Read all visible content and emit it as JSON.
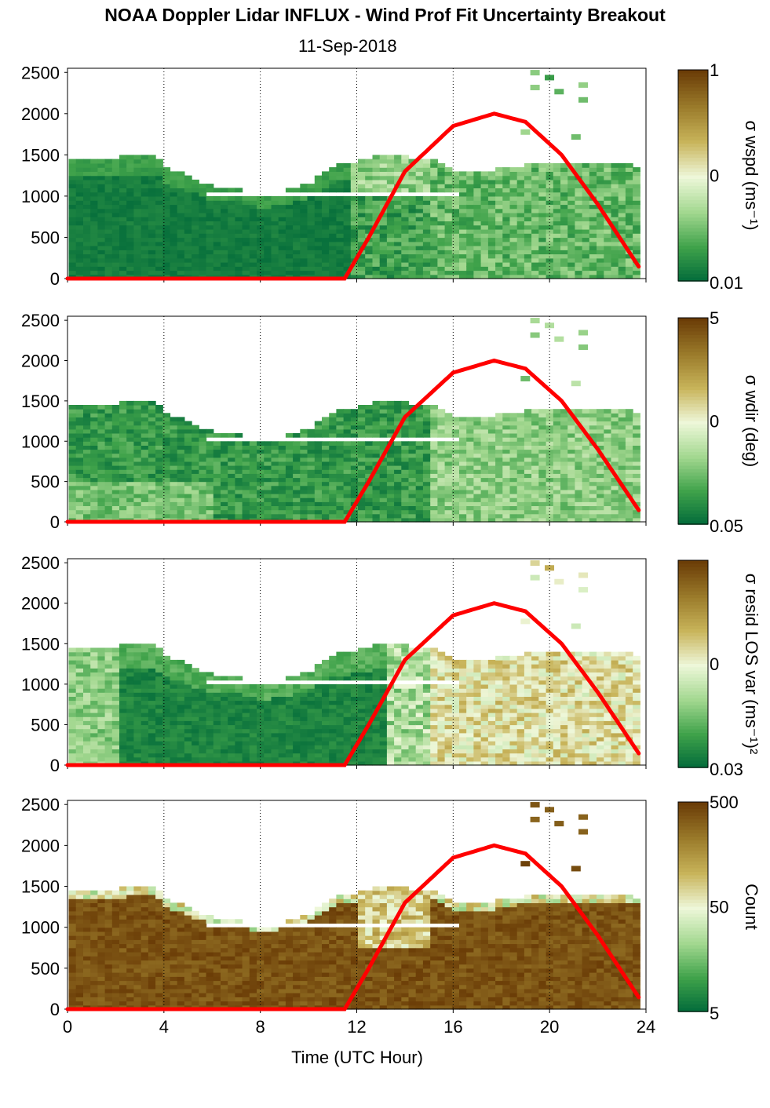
{
  "title": "NOAA Doppler Lidar INFLUX - Wind Prof Fit Uncertainty Breakout",
  "subtitle": "11-Sep-2018",
  "colors": {
    "dark_green": "#00693a",
    "mid_green": "#3fa24a",
    "light_green": "#a3d890",
    "pale": "#eef7d9",
    "khaki": "#c8b45a",
    "olive_brown": "#9a7a2a",
    "dark_brown": "#6b3d07",
    "sun_curve": "#ff0000"
  },
  "chart_data": [
    {
      "type": "heatmap",
      "panel": "sigma wspd",
      "xlabel": "",
      "ylabel": "",
      "xlim": [
        0,
        24
      ],
      "ylim": [
        0,
        2550
      ],
      "x_ticks": [
        "0",
        "4",
        "8",
        "12",
        "16",
        "20",
        "24"
      ],
      "y_ticks": [
        "0",
        "500",
        "1000",
        "1500",
        "2000",
        "2500"
      ],
      "colorbar_label": "σ wspd (ms⁻¹)",
      "colorbar_ticks": [
        "1",
        "0",
        "0.01"
      ],
      "top_of_data_m": {
        "x": [
          0,
          2,
          3.5,
          4,
          5,
          6,
          7,
          8,
          9,
          10,
          11,
          12,
          13,
          14,
          15,
          16,
          17,
          18,
          19,
          20,
          21,
          22,
          23,
          23.7
        ],
        "y": [
          1450,
          1450,
          1460,
          1320,
          1200,
          1080,
          1070,
          980,
          1050,
          1150,
          1350,
          1400,
          1480,
          1450,
          1420,
          1280,
          1250,
          1320,
          1360,
          1380,
          1380,
          1360,
          1360,
          1340
        ]
      },
      "solar_curve": {
        "x": [
          0,
          11.5,
          12.5,
          14,
          16,
          17.7,
          19,
          20.5,
          22,
          23.8
        ],
        "y": [
          0,
          0,
          500,
          1300,
          1850,
          2000,
          1900,
          1500,
          900,
          100
        ]
      }
    },
    {
      "type": "heatmap",
      "panel": "sigma wdir",
      "xlim": [
        0,
        24
      ],
      "ylim": [
        0,
        2550
      ],
      "x_ticks": [
        "0",
        "4",
        "8",
        "12",
        "16",
        "20",
        "24"
      ],
      "y_ticks": [
        "0",
        "500",
        "1000",
        "1500",
        "2000",
        "2500"
      ],
      "colorbar_label": "σ wdir (deg)",
      "colorbar_ticks": [
        "5",
        "0",
        "0.05"
      ]
    },
    {
      "type": "heatmap",
      "panel": "sigma resid LOS var",
      "xlim": [
        0,
        24
      ],
      "ylim": [
        0,
        2550
      ],
      "x_ticks": [
        "0",
        "4",
        "8",
        "12",
        "16",
        "20",
        "24"
      ],
      "y_ticks": [
        "0",
        "500",
        "1000",
        "1500",
        "2000",
        "2500"
      ],
      "colorbar_label": "σ resid LOS var (ms⁻¹)²",
      "colorbar_ticks": [
        "0",
        "0.03"
      ]
    },
    {
      "type": "heatmap",
      "panel": "Count",
      "xlim": [
        0,
        24
      ],
      "ylim": [
        0,
        2550
      ],
      "x_ticks": [
        "0",
        "4",
        "8",
        "12",
        "16",
        "20",
        "24"
      ],
      "y_ticks": [
        "0",
        "500",
        "1000",
        "1500",
        "2000",
        "2500"
      ],
      "xlabel": "Time (UTC Hour)",
      "colorbar_label": "Count",
      "colorbar_ticks": [
        "500",
        "50",
        "5"
      ]
    }
  ]
}
